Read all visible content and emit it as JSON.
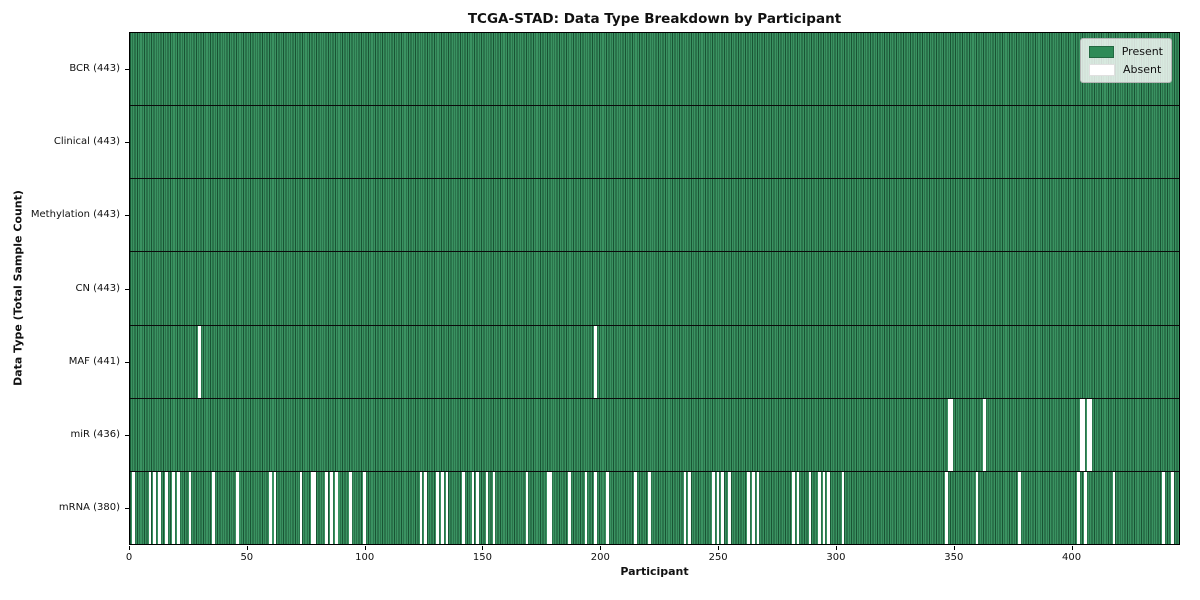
{
  "title": "TCGA-STAD: Data Type Breakdown by Participant",
  "xlabel": "Participant",
  "ylabel": "Data Type (Total Sample Count)",
  "legend": {
    "present_label": "Present",
    "absent_label": "Absent"
  },
  "colors": {
    "present": "#2e8b57",
    "absent": "#ffffff",
    "bar_edge": "#0b2618",
    "row_divider": "#0b0b0b",
    "legend_bg": "rgba(255,255,255,0.8)"
  },
  "x_ticks": [
    0,
    50,
    100,
    150,
    200,
    250,
    300,
    350,
    400
  ],
  "x_max": 446,
  "chart_data": {
    "type": "heatmap",
    "title": "TCGA-STAD: Data Type Breakdown by Participant",
    "xlabel": "Participant",
    "ylabel": "Data Type (Total Sample Count)",
    "legend": [
      "Present",
      "Absent"
    ],
    "legend_position": "upper right",
    "n_participants": 443,
    "x_axis_range": [
      0,
      446
    ],
    "x_tick_values": [
      0,
      50,
      100,
      150,
      200,
      250,
      300,
      350,
      400
    ],
    "rows": [
      {
        "name": "BCR",
        "label": "BCR (443)",
        "count": 443,
        "absent_participants": []
      },
      {
        "name": "Clinical",
        "label": "Clinical (443)",
        "count": 443,
        "absent_participants": []
      },
      {
        "name": "Methylation",
        "label": "Methylation (443)",
        "count": 443,
        "absent_participants": []
      },
      {
        "name": "CN",
        "label": "CN (443)",
        "count": 443,
        "absent_participants": []
      },
      {
        "name": "MAF",
        "label": "MAF (441)",
        "count": 441,
        "absent_participants": [
          29,
          197
        ]
      },
      {
        "name": "miR",
        "label": "miR (436)",
        "count": 436,
        "absent_participants": [
          347,
          348,
          362,
          403,
          404,
          406,
          407
        ]
      },
      {
        "name": "mRNA",
        "label": "mRNA (380)",
        "count": 380,
        "absent_participants": [
          1,
          8,
          10,
          12,
          15,
          18,
          20,
          25,
          35,
          45,
          59,
          61,
          72,
          77,
          78,
          83,
          85,
          87,
          93,
          99,
          123,
          125,
          130,
          132,
          134,
          141,
          145,
          147,
          151,
          154,
          168,
          177,
          178,
          186,
          193,
          197,
          202,
          214,
          220,
          235,
          237,
          247,
          249,
          251,
          254,
          262,
          264,
          266,
          281,
          283,
          288,
          292,
          294,
          296,
          302,
          346,
          359,
          377,
          402,
          405,
          417,
          438,
          442
        ]
      }
    ]
  }
}
